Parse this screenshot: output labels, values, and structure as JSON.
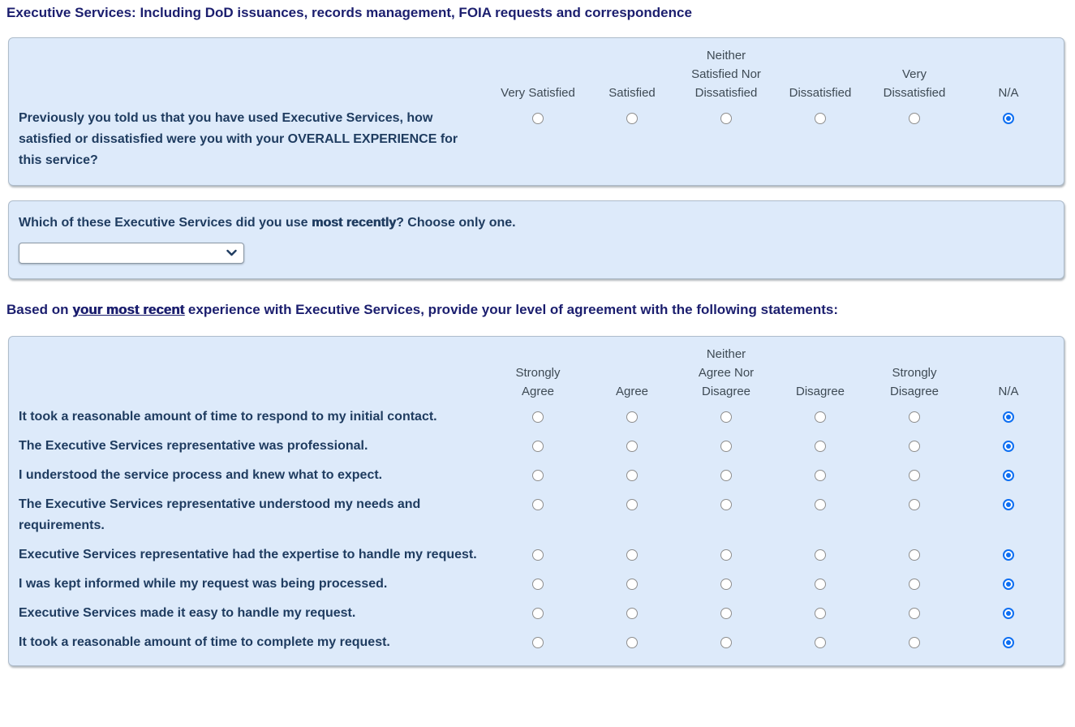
{
  "page": {
    "title": "Executive Services: Including DoD issuances, records management, FOIA requests and correspondence"
  },
  "colors": {
    "heading_navy": "#1b1e6e",
    "statement_navy": "#1f3c60",
    "column_header_gray": "#3e4a54",
    "panel_background": "#ddeafa",
    "radio_selected_blue": "#0e6ff2"
  },
  "satisfaction_matrix": {
    "columns": [
      "Very Satisfied",
      "Satisfied",
      "Neither\nSatisfied Nor\nDissatisfied",
      "Dissatisfied",
      "Very\nDissatisfied",
      "N/A"
    ],
    "rows": [
      {
        "text": "Previously you told us that you have used Executive Services, how satisfied or dissatisfied were you with your OVERALL EXPERIENCE for this service?",
        "selected": "N/A"
      }
    ]
  },
  "recent_service": {
    "question_prefix": "Which of these Executive Services did you use ",
    "question_emphasis": "most recently",
    "question_suffix": "? Choose only one.",
    "dropdown_value": ""
  },
  "intro": {
    "prefix": "Based on ",
    "emphasis": "your most recent",
    "suffix": " experience with Executive Services, provide your level of agreement with the following statements:"
  },
  "agreement_matrix": {
    "columns": [
      "Strongly\nAgree",
      "Agree",
      "Neither\nAgree Nor\nDisagree",
      "Disagree",
      "Strongly\nDisagree",
      "N/A"
    ],
    "rows": [
      {
        "text": "It took a reasonable amount of time to respond to my initial contact.",
        "selected": "N/A"
      },
      {
        "text": "The Executive Services representative was professional.",
        "selected": "N/A"
      },
      {
        "text": "I understood the service process and knew what to expect.",
        "selected": "N/A"
      },
      {
        "text": "The Executive Services representative understood my needs and requirements.",
        "selected": "N/A"
      },
      {
        "text": "Executive Services representative had the expertise to handle my request.",
        "selected": "N/A"
      },
      {
        "text": "I was kept informed while my request was being processed.",
        "selected": "N/A"
      },
      {
        "text": "Executive Services made it easy to handle my request.",
        "selected": "N/A"
      },
      {
        "text": "It took a reasonable amount of time to complete my request.",
        "selected": "N/A"
      }
    ]
  }
}
